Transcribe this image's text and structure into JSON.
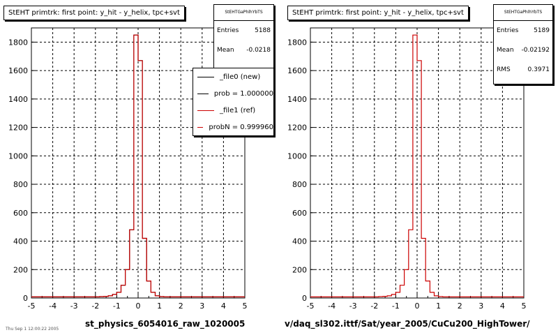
{
  "footer_text": "Thu Sep 1 12:00:22 2005",
  "panels": [
    {
      "title": "StEHT primtrk: first point: y_hit - y_helix, tpc+svt",
      "xlabel": "st_physics_6054016_raw_1020005",
      "stats": {
        "name": "StEHTGaPhlhYbTS",
        "rows": [
          {
            "label": "Entries",
            "value": "5188"
          },
          {
            "label": "Mean",
            "value": "-0.0218"
          }
        ]
      },
      "legend": [
        {
          "label": "_file0 (new)",
          "color": "#000000"
        },
        {
          "label": "prob = 1.000000",
          "color": "#000000"
        },
        {
          "label": "_file1 (ref)",
          "color": "#cc0000"
        },
        {
          "label": "probN = 0.999960",
          "color": "#cc0000"
        }
      ]
    },
    {
      "title": "StEHT primtrk: first point: y_hit - y_helix, tpc+svt",
      "xlabel": "v/daq_sl302.ittf/Sat/year_2005/CuCu200_HighTower/",
      "stats": {
        "name": "StEHTGaPhlhYbTS",
        "rows": [
          {
            "label": "Entries",
            "value": "5189"
          },
          {
            "label": "Mean",
            "value": "-0.02192"
          },
          {
            "label": "RMS",
            "value": "0.3971"
          }
        ]
      },
      "legend": []
    }
  ],
  "chart_data": [
    {
      "type": "histogram",
      "title": "StEHT primtrk: first point: y_hit - y_helix, tpc+svt",
      "xlabel": "st_physics_6054016_raw_1020005",
      "ylabel": "",
      "xlim": [
        -5,
        5
      ],
      "ylim": [
        0,
        1900
      ],
      "xticks": [
        -5,
        -4,
        -3,
        -2,
        -1,
        0,
        1,
        2,
        3,
        4,
        5
      ],
      "yticks": [
        0,
        200,
        400,
        600,
        800,
        1000,
        1200,
        1400,
        1600,
        1800
      ],
      "grid": true,
      "bin_width": 0.2,
      "bin_edges_start": -5,
      "series": [
        {
          "name": "_file0 (new)",
          "color": "#000000",
          "values": [
            8,
            8,
            8,
            8,
            8,
            8,
            8,
            8,
            8,
            8,
            8,
            8,
            8,
            8,
            8,
            8,
            10,
            12,
            15,
            25,
            40,
            90,
            200,
            480,
            1850,
            1670,
            420,
            120,
            40,
            15,
            10,
            8,
            8,
            8,
            8,
            8,
            8,
            8,
            8,
            8,
            8,
            8,
            8,
            8,
            8,
            8,
            8,
            8,
            8,
            8
          ]
        },
        {
          "name": "_file1 (ref)",
          "color": "#cc0000",
          "values": [
            8,
            8,
            8,
            8,
            8,
            8,
            8,
            8,
            8,
            8,
            8,
            8,
            8,
            8,
            8,
            8,
            10,
            12,
            15,
            25,
            40,
            90,
            200,
            480,
            1850,
            1670,
            420,
            120,
            40,
            15,
            10,
            8,
            8,
            8,
            8,
            8,
            8,
            8,
            8,
            8,
            8,
            8,
            8,
            8,
            8,
            8,
            8,
            8,
            8,
            8
          ]
        }
      ]
    },
    {
      "type": "histogram",
      "title": "StEHT primtrk: first point: y_hit - y_helix, tpc+svt",
      "xlabel": "v/daq_sl302.ittf/Sat/year_2005/CuCu200_HighTower/",
      "ylabel": "",
      "xlim": [
        -5,
        5
      ],
      "ylim": [
        0,
        1900
      ],
      "xticks": [
        -5,
        -4,
        -3,
        -2,
        -1,
        0,
        1,
        2,
        3,
        4,
        5
      ],
      "yticks": [
        0,
        200,
        400,
        600,
        800,
        1000,
        1200,
        1400,
        1600,
        1800
      ],
      "grid": true,
      "bin_width": 0.2,
      "bin_edges_start": -5,
      "series": [
        {
          "name": "",
          "color": "#cc0000",
          "values": [
            8,
            8,
            8,
            8,
            8,
            8,
            8,
            8,
            8,
            8,
            8,
            8,
            8,
            8,
            8,
            8,
            10,
            12,
            15,
            25,
            40,
            90,
            200,
            480,
            1850,
            1670,
            420,
            120,
            40,
            15,
            10,
            8,
            8,
            8,
            8,
            8,
            8,
            8,
            8,
            8,
            8,
            8,
            8,
            8,
            8,
            8,
            8,
            8,
            8,
            8
          ]
        }
      ]
    }
  ]
}
